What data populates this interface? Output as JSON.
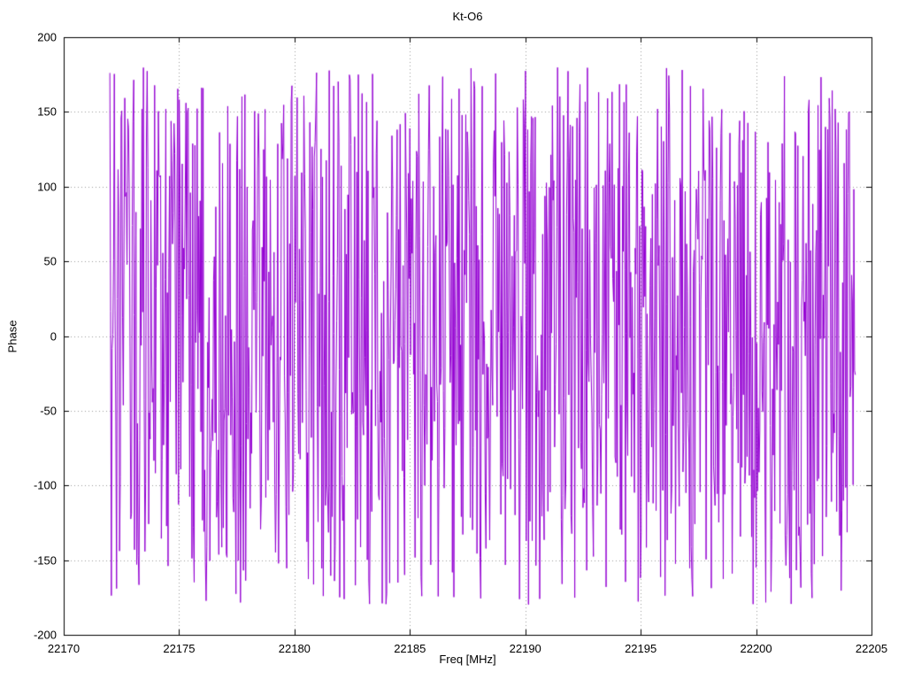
{
  "chart_data": {
    "type": "line",
    "title": "Kt-O6",
    "xlabel": "Freq [MHz]",
    "ylabel": "Phase",
    "xlim": [
      22170,
      22205
    ],
    "ylim": [
      -200,
      200
    ],
    "xticks": [
      22170,
      22175,
      22180,
      22185,
      22190,
      22195,
      22200,
      22205
    ],
    "yticks": [
      -200,
      -150,
      -100,
      -50,
      0,
      50,
      100,
      150,
      200
    ],
    "grid": true,
    "grid_style": "dotted",
    "grid_color": "#9b9b9b",
    "axis_color": "#000000",
    "background_color": "#ffffff",
    "legend": "none",
    "series": [
      {
        "name": "phase",
        "color": "#9400d3",
        "x_start": 22172.0,
        "x_end": 22204.3,
        "n_points": 1000,
        "y_min": -180,
        "y_max": 180,
        "character": "uniform random wrapped phase noise spanning -180 to +180 degrees across the full frequency span",
        "seed": 20221
      }
    ]
  }
}
